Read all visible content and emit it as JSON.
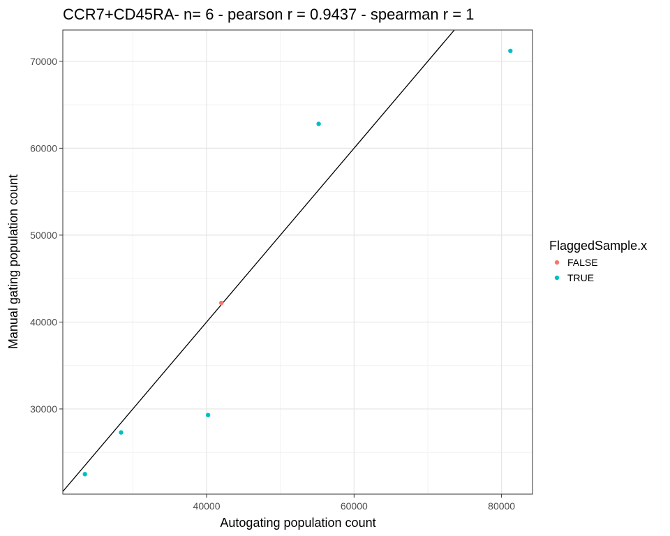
{
  "chart_data": {
    "type": "scatter",
    "title": "CCR7+CD45RA- n= 6 - pearson r = 0.9437 - spearman r = 1",
    "xlabel": "Autogating population count",
    "ylabel": "Manual gating population count",
    "xlim": [
      20500,
      84200
    ],
    "ylim": [
      20200,
      73600
    ],
    "x_ticks": [
      40000,
      60000,
      80000
    ],
    "x_tick_labels": [
      "40000",
      "60000",
      "80000"
    ],
    "x_minor_ticks": [
      30000,
      50000,
      70000
    ],
    "y_ticks": [
      30000,
      40000,
      50000,
      60000,
      70000
    ],
    "y_tick_labels": [
      "30000",
      "40000",
      "50000",
      "60000",
      "70000"
    ],
    "y_minor_ticks": [
      25000,
      35000,
      45000,
      55000,
      65000
    ],
    "grid": true,
    "legend_position": "right",
    "legend": {
      "title": "FlaggedSample.x",
      "entries": [
        {
          "label": "FALSE",
          "color": "#F8766D"
        },
        {
          "label": "TRUE",
          "color": "#00BFC4"
        }
      ]
    },
    "reference_line": {
      "type": "identity",
      "slope": 1,
      "intercept": 0,
      "color": "#000000"
    },
    "series": [
      {
        "name": "FALSE",
        "color": "#F8766D",
        "points": [
          {
            "x": 42000,
            "y": 42200
          }
        ]
      },
      {
        "name": "TRUE",
        "color": "#00BFC4",
        "points": [
          {
            "x": 23500,
            "y": 22500
          },
          {
            "x": 28400,
            "y": 27300
          },
          {
            "x": 40200,
            "y": 29300
          },
          {
            "x": 55200,
            "y": 62800
          },
          {
            "x": 81200,
            "y": 71200
          }
        ]
      }
    ]
  }
}
